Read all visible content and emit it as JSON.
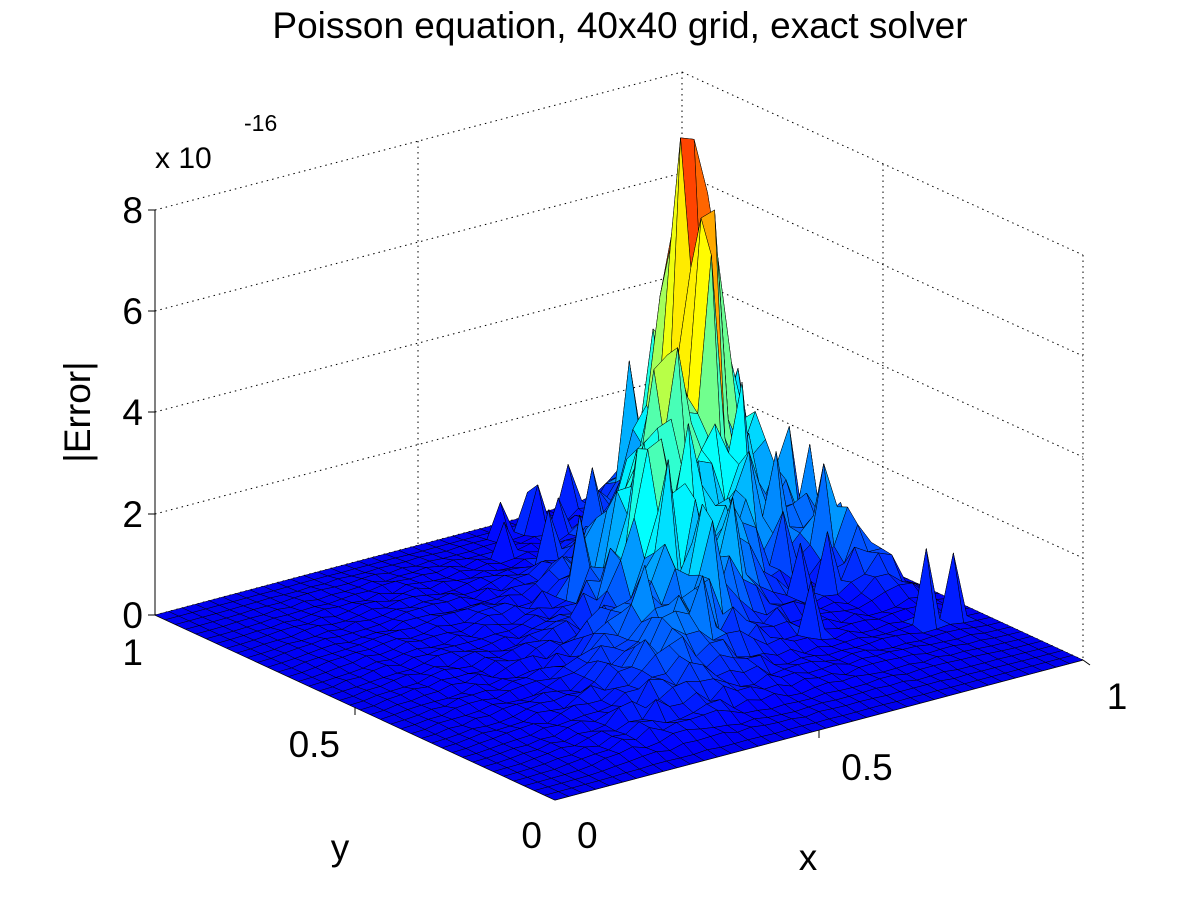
{
  "chart_data": {
    "type": "surface",
    "title": "Poisson equation, 40x40 grid, exact solver",
    "xlabel": "x",
    "ylabel": "y",
    "zlabel": "|Error|",
    "z_multiplier": "x 10",
    "z_exponent": "-16",
    "grid_size": [
      40,
      40
    ],
    "xlim": [
      0,
      1
    ],
    "ylim": [
      0,
      1
    ],
    "zlim": [
      0,
      8
    ],
    "x_ticks": [
      "0",
      "0.5",
      "1"
    ],
    "y_ticks": [
      "0",
      "0.5",
      "1"
    ],
    "z_ticks": [
      "0",
      "2",
      "4",
      "6",
      "8"
    ],
    "grid": true,
    "colormap": "jet",
    "peak": {
      "x": 0.85,
      "y": 0.78,
      "z": 7.9
    }
  }
}
